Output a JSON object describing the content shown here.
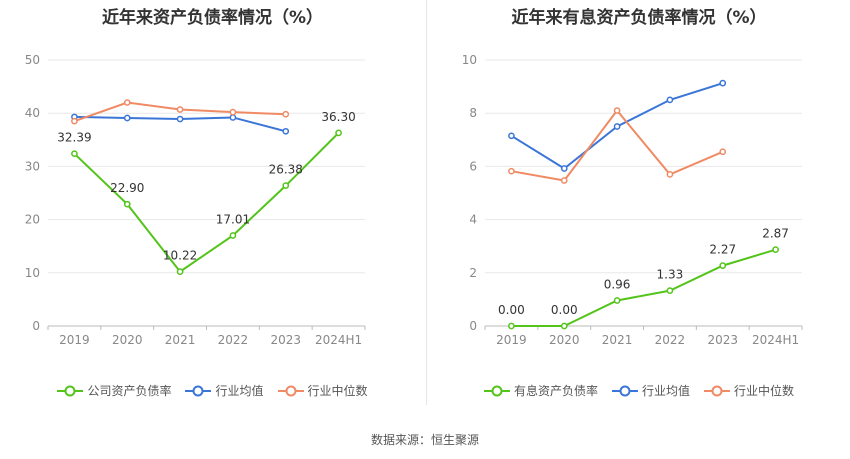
{
  "chart_data": [
    {
      "type": "line",
      "title": "近年来资产负债率情况（%）",
      "categories": [
        "2019",
        "2020",
        "2021",
        "2022",
        "2023",
        "2024H1"
      ],
      "ylim": [
        0,
        50
      ],
      "yticks": [
        "0",
        "10",
        "20",
        "30",
        "40",
        "50"
      ],
      "series": [
        {
          "name": "公司资产负债率",
          "color": "#52c41a",
          "values": [
            32.39,
            22.9,
            10.22,
            17.01,
            26.38,
            36.3
          ],
          "labels": [
            "32.39",
            "22.90",
            "10.22",
            "17.01",
            "26.38",
            "36.30"
          ]
        },
        {
          "name": "行业均值",
          "color": "#3a75d8",
          "values": [
            39.3,
            39.1,
            38.9,
            39.2,
            36.6,
            null
          ]
        },
        {
          "name": "行业中位数",
          "color": "#f08a64",
          "values": [
            38.5,
            42.0,
            40.7,
            40.2,
            39.8,
            null
          ]
        }
      ]
    },
    {
      "type": "line",
      "title": "近年来有息资产负债率情况（%）",
      "categories": [
        "2019",
        "2020",
        "2021",
        "2022",
        "2023",
        "2024H1"
      ],
      "ylim": [
        0,
        10
      ],
      "yticks": [
        "0",
        "2",
        "4",
        "6",
        "8",
        "10"
      ],
      "series": [
        {
          "name": "有息资产负债率",
          "color": "#52c41a",
          "values": [
            0.0,
            0.0,
            0.96,
            1.33,
            2.27,
            2.87
          ],
          "labels": [
            "0.00",
            "0.00",
            "0.96",
            "1.33",
            "2.27",
            "2.87"
          ]
        },
        {
          "name": "行业均值",
          "color": "#3a75d8",
          "values": [
            7.15,
            5.92,
            7.5,
            8.5,
            9.13,
            null
          ]
        },
        {
          "name": "行业中位数",
          "color": "#f08a64",
          "values": [
            5.82,
            5.47,
            8.1,
            5.7,
            6.55,
            null
          ]
        }
      ]
    }
  ],
  "source_text": "数据来源：恒生聚源"
}
